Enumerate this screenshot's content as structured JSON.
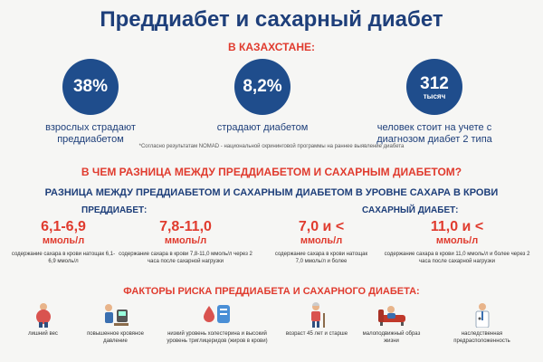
{
  "title": "Преддиабет и сахарный диабет",
  "subtitle": "В КАЗАХСТАНЕ:",
  "stats": [
    {
      "value": "38%",
      "unit": "",
      "desc": "взрослых страдают преддиабетом"
    },
    {
      "value": "8,2%",
      "unit": "",
      "desc": "страдают диабетом"
    },
    {
      "value": "312",
      "unit": "тысяч",
      "desc": "человек стоит на учете с диагнозом диабет 2 типа"
    }
  ],
  "footnote": "*Согласно результатам NOMAD - национальной скрининговой программы на раннее выявление диабета",
  "question": "В ЧЕМ РАЗНИЦА МЕЖДУ ПРЕДДИАБЕТОМ И САХАРНЫМ ДИАБЕТОМ?",
  "question_sub": "РАЗНИЦА МЕЖДУ ПРЕДДИАБЕТОМ И САХАРНЫМ ДИАБЕТОМ В УРОВНЕ САХАРА В КРОВИ",
  "prediabetes": {
    "header": "ПРЕДДИАБЕТ:",
    "values": [
      {
        "num": "6,1-6,9",
        "unit": "ммоль/л",
        "desc": "содержание сахара в крови натощак 6,1-6,9 ммоль/л"
      },
      {
        "num": "7,8-11,0",
        "unit": "ммоль/л",
        "desc": "содержание сахара в крови 7,8-11,0 ммоль/л через 2 часа после сахарной нагрузки"
      }
    ]
  },
  "diabetes": {
    "header": "САХАРНЫЙ ДИАБЕТ:",
    "values": [
      {
        "num": "7,0 и <",
        "unit": "ммоль/л",
        "desc": "содержание сахара в крови натощак 7,0 ммоль/л и более"
      },
      {
        "num": "11,0 и <",
        "unit": "ммоль/л",
        "desc": "содержание сахара в крови 11,0 ммоль/л и более через 2 часа после сахарной нагрузки"
      }
    ]
  },
  "risk_title": "ФАКТОРЫ РИСКА ПРЕДДИАБЕТА И САХАРНОГО ДИАБЕТА:",
  "risk_factors": [
    {
      "icon": "overweight-person-icon",
      "label": "лишний вес"
    },
    {
      "icon": "blood-pressure-icon",
      "label": "повышенное кровяное давление"
    },
    {
      "icon": "blood-drop-icon",
      "label": "низкий уровень холестерина и высокий уровень триглицеридов (жиров в крови)"
    },
    {
      "icon": "elderly-person-icon",
      "label": "возраст 45 лет и старше"
    },
    {
      "icon": "sedentary-person-icon",
      "label": "малоподвижный образ жизни"
    },
    {
      "icon": "doctor-icon",
      "label": "наследственная предрасположенность"
    }
  ],
  "colors": {
    "accent": "#e03b2e",
    "brand": "#1e3f7a",
    "circle": "#1f4d8c"
  }
}
